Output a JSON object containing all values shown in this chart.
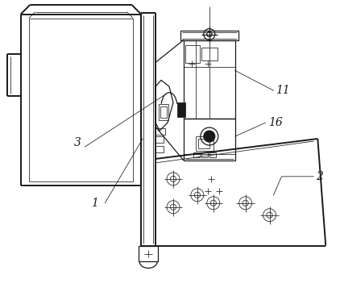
{
  "bg_color": "#ffffff",
  "line_color": "#1a1a1a",
  "lw_thick": 1.4,
  "lw_med": 0.9,
  "lw_thin": 0.55,
  "label_fontsize": 10,
  "label_fontsize_sm": 9
}
